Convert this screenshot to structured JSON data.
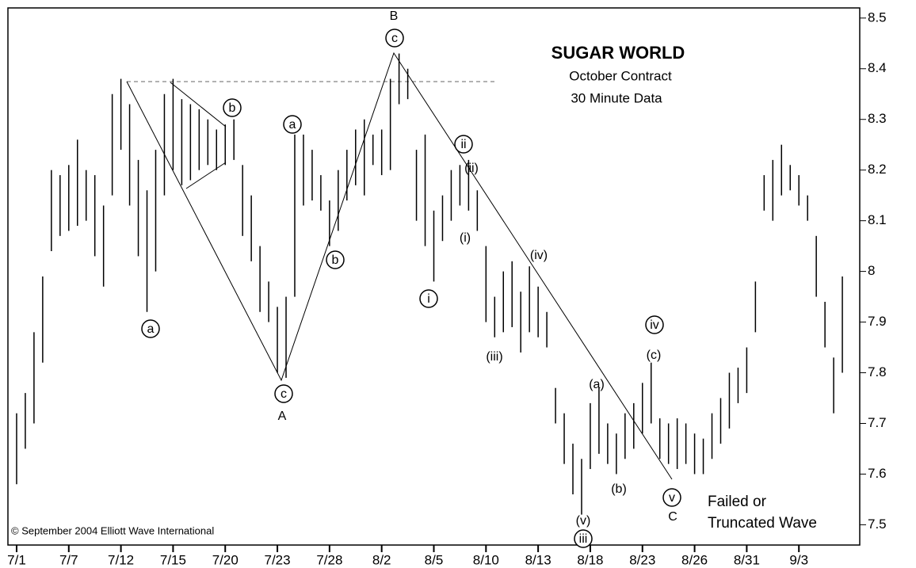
{
  "chart_data": {
    "type": "hilo",
    "title": "SUGAR WORLD",
    "subtitle": [
      "October Contract",
      "30 Minute Data"
    ],
    "credit": "© September 2004 Elliott Wave International",
    "color": "#000000",
    "xlim": [
      -0.5,
      48.5
    ],
    "xticks": [
      {
        "value": 0,
        "label": "7/1"
      },
      {
        "value": 3,
        "label": "7/7"
      },
      {
        "value": 6,
        "label": "7/12"
      },
      {
        "value": 9,
        "label": "7/15"
      },
      {
        "value": 12,
        "label": "7/20"
      },
      {
        "value": 15,
        "label": "7/23"
      },
      {
        "value": 18,
        "label": "7/28"
      },
      {
        "value": 21,
        "label": "8/2"
      },
      {
        "value": 24,
        "label": "8/5"
      },
      {
        "value": 27,
        "label": "8/10"
      },
      {
        "value": 30,
        "label": "8/13"
      },
      {
        "value": 33,
        "label": "8/18"
      },
      {
        "value": 36,
        "label": "8/23"
      },
      {
        "value": 39,
        "label": "8/26"
      },
      {
        "value": 42,
        "label": "8/31"
      },
      {
        "value": 45,
        "label": "9/3"
      }
    ],
    "ylim": [
      7.46,
      8.52
    ],
    "yticks": [
      7.5,
      7.6,
      7.7,
      7.8,
      7.9,
      8,
      8.1,
      8.2,
      8.3,
      8.4,
      8.5
    ],
    "x": [
      0,
      0.5,
      1,
      1.5,
      2,
      2.5,
      3,
      3.5,
      4,
      4.5,
      5,
      5.5,
      6,
      6.5,
      7,
      7.5,
      8,
      8.5,
      9,
      9.5,
      10,
      10.5,
      11,
      11.5,
      12,
      12.5,
      13,
      13.5,
      14,
      14.5,
      15,
      15.5,
      16,
      16.5,
      17,
      17.5,
      18,
      18.5,
      19,
      19.5,
      20,
      20.5,
      21,
      21.5,
      22,
      22.5,
      23,
      23.5,
      24,
      24.5,
      25,
      25.5,
      26,
      26.5,
      27,
      27.5,
      28,
      28.5,
      29,
      29.5,
      30,
      30.5,
      31,
      31.5,
      32,
      32.5,
      33,
      33.5,
      34,
      34.5,
      35,
      35.5,
      36,
      36.5,
      37,
      37.5,
      38,
      38.5,
      39,
      39.5,
      40,
      40.5,
      41,
      41.5,
      42,
      42.5,
      43,
      43.5,
      44,
      44.5,
      45,
      45.5,
      46,
      46.5,
      47,
      47.5
    ],
    "high": [
      7.72,
      7.76,
      7.88,
      7.99,
      8.2,
      8.19,
      8.21,
      8.26,
      8.2,
      8.19,
      8.13,
      8.35,
      8.38,
      8.33,
      8.22,
      8.16,
      8.24,
      8.35,
      8.38,
      8.34,
      8.33,
      8.32,
      8.3,
      8.28,
      8.29,
      8.3,
      8.21,
      8.15,
      8.05,
      7.98,
      7.93,
      7.95,
      8.27,
      8.27,
      8.24,
      8.19,
      8.14,
      8.2,
      8.24,
      8.28,
      8.3,
      8.27,
      8.28,
      8.38,
      8.43,
      8.4,
      8.24,
      8.27,
      8.12,
      8.15,
      8.2,
      8.21,
      8.22,
      8.16,
      8.05,
      7.95,
      8.0,
      8.02,
      7.96,
      8.01,
      7.97,
      7.92,
      7.77,
      7.72,
      7.66,
      7.63,
      7.74,
      7.77,
      7.7,
      7.68,
      7.72,
      7.74,
      7.78,
      7.82,
      7.71,
      7.7,
      7.71,
      7.7,
      7.68,
      7.67,
      7.72,
      7.75,
      7.8,
      7.81,
      7.85,
      7.98,
      8.19,
      8.22,
      8.25,
      8.21,
      8.19,
      8.15,
      8.07,
      7.94,
      7.83,
      7.99
    ],
    "low": [
      7.58,
      7.65,
      7.7,
      7.82,
      8.04,
      8.07,
      8.08,
      8.09,
      8.1,
      8.03,
      7.97,
      8.15,
      8.24,
      8.13,
      8.03,
      7.92,
      8.0,
      8.15,
      8.2,
      8.17,
      8.18,
      8.2,
      8.21,
      8.2,
      8.21,
      8.22,
      8.07,
      8.02,
      7.92,
      7.9,
      7.8,
      7.79,
      7.95,
      8.13,
      8.14,
      8.12,
      8.05,
      8.08,
      8.14,
      8.17,
      8.15,
      8.21,
      8.19,
      8.2,
      8.33,
      8.34,
      8.1,
      8.05,
      7.98,
      8.06,
      8.1,
      8.13,
      8.12,
      8.08,
      7.9,
      7.87,
      7.88,
      7.89,
      7.84,
      7.88,
      7.87,
      7.85,
      7.7,
      7.62,
      7.56,
      7.52,
      7.61,
      7.64,
      7.62,
      7.6,
      7.63,
      7.65,
      7.68,
      7.7,
      7.63,
      7.62,
      7.61,
      7.62,
      7.6,
      7.6,
      7.63,
      7.66,
      7.69,
      7.74,
      7.76,
      7.88,
      8.12,
      8.1,
      8.15,
      8.16,
      8.13,
      8.1,
      7.95,
      7.85,
      7.72,
      7.8
    ],
    "annotations": [
      "a",
      "c",
      "A",
      "b",
      "a",
      "b",
      "B",
      "c",
      "ii",
      "(ii)",
      "(i)",
      "i",
      "(iii)",
      "(iv)",
      "(v)",
      "iii",
      "(a)",
      "(b)",
      "iv",
      "(c)",
      "v",
      "C",
      "Failed or",
      "Truncated Wave"
    ]
  }
}
